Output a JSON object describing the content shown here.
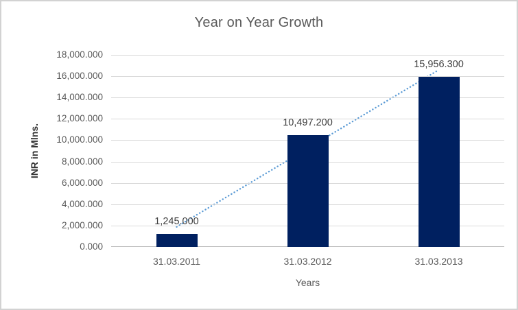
{
  "chart_data": {
    "type": "bar",
    "title": "Year on Year Growth",
    "xlabel": "Years",
    "ylabel": "INR in Mlns.",
    "categories": [
      "31.03.2011",
      "31.03.2012",
      "31.03.2013"
    ],
    "values": [
      1245.0,
      10497.2,
      15956.3
    ],
    "data_labels": [
      "1,245.000",
      "10,497.200",
      "15,956.300"
    ],
    "ylim": [
      0,
      18000
    ],
    "y_tick_step": 2000,
    "y_ticks": [
      {
        "value": 0,
        "label": "0.000"
      },
      {
        "value": 2000,
        "label": "2,000.000"
      },
      {
        "value": 4000,
        "label": "4,000.000"
      },
      {
        "value": 6000,
        "label": "6,000.000"
      },
      {
        "value": 8000,
        "label": "8,000.000"
      },
      {
        "value": 10000,
        "label": "10,000.000"
      },
      {
        "value": 12000,
        "label": "12,000.000"
      },
      {
        "value": 14000,
        "label": "14,000.000"
      },
      {
        "value": 16000,
        "label": "16,000.000"
      },
      {
        "value": 18000,
        "label": "18,000.000"
      }
    ],
    "grid": true,
    "legend": "none",
    "trendline": {
      "type": "linear",
      "style": "dotted",
      "y_endpoints": [
        1877.2,
        16589.5
      ],
      "behind_bars": true
    },
    "colors": {
      "bar": "#002060",
      "trendline": "#5b9bd5",
      "gridline": "#d9d9d9",
      "axis_line": "#bfbfbf",
      "title_text": "#595959",
      "tick_text": "#595959",
      "data_label_text": "#3f3f3f",
      "y_axis_title_text": "#333333",
      "chart_border": "#d2d2d2"
    }
  }
}
